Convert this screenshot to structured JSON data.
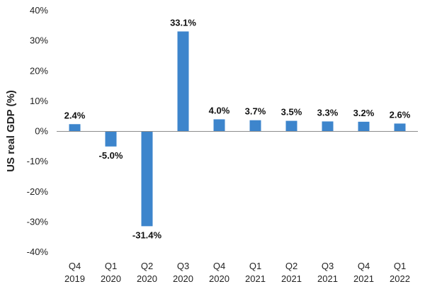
{
  "chart_data": {
    "type": "bar",
    "title": "",
    "xlabel": "",
    "ylabel": "US real GDP (%)",
    "ylim": [
      -40,
      40
    ],
    "yticks": [
      -40,
      -30,
      -20,
      -10,
      0,
      10,
      20,
      30,
      40
    ],
    "ytick_labels": [
      "-40%",
      "-30%",
      "-20%",
      "-10%",
      "0%",
      "10%",
      "20%",
      "30%",
      "40%"
    ],
    "categories": [
      [
        "Q4",
        "2019"
      ],
      [
        "Q1",
        "2020"
      ],
      [
        "Q2",
        "2020"
      ],
      [
        "Q3",
        "2020"
      ],
      [
        "Q4",
        "2020"
      ],
      [
        "Q1",
        "2021"
      ],
      [
        "Q2",
        "2021"
      ],
      [
        "Q3",
        "2021"
      ],
      [
        "Q4",
        "2021"
      ],
      [
        "Q1",
        "2022"
      ]
    ],
    "values": [
      2.4,
      -5.0,
      -31.4,
      33.1,
      4.0,
      3.7,
      3.5,
      3.3,
      3.2,
      2.6
    ],
    "data_labels": [
      "2.4%",
      "-5.0%",
      "-31.4%",
      "33.1%",
      "4.0%",
      "3.7%",
      "3.5%",
      "3.3%",
      "3.2%",
      "2.6%"
    ],
    "grid": false,
    "legend": "none",
    "colors": {
      "bar": "#3d85cc",
      "axis": "#8c8c8c"
    }
  }
}
